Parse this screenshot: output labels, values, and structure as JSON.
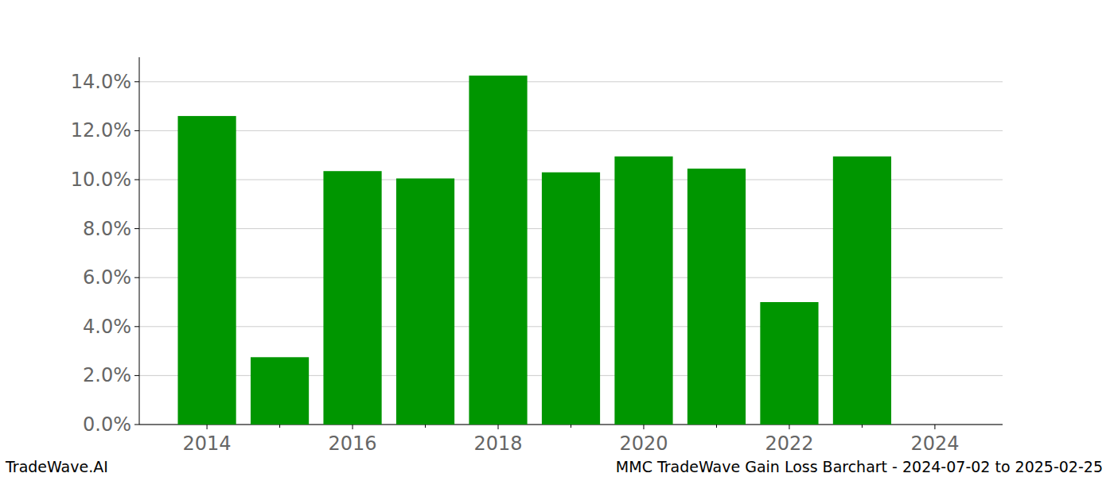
{
  "chart_data": {
    "type": "bar",
    "title": "MMC TradeWave Gain Loss Barchart - 2024-07-02 to 2025-02-25",
    "annotations": [
      "TradeWave.AI"
    ],
    "x": [
      2014,
      2015,
      2016,
      2017,
      2018,
      2019,
      2020,
      2021,
      2022,
      2023
    ],
    "values": [
      12.6,
      2.75,
      10.35,
      10.05,
      14.25,
      10.3,
      10.95,
      10.45,
      5.0,
      10.95
    ],
    "color": "#009600",
    "xlim": [
      2013.07,
      2024.93
    ],
    "xticks": [
      2014,
      2016,
      2018,
      2020,
      2022,
      2024
    ],
    "ylim": [
      0,
      15
    ],
    "yticks": [
      {
        "value": 0,
        "label": "0.0%"
      },
      {
        "value": 2,
        "label": "2.0%"
      },
      {
        "value": 4,
        "label": "4.0%"
      },
      {
        "value": 6,
        "label": "6.0%"
      },
      {
        "value": 8,
        "label": "8.0%"
      },
      {
        "value": 10,
        "label": "10.0%"
      },
      {
        "value": 12,
        "label": "12.0%"
      },
      {
        "value": 14,
        "label": "14.0%"
      }
    ],
    "grid": true
  }
}
